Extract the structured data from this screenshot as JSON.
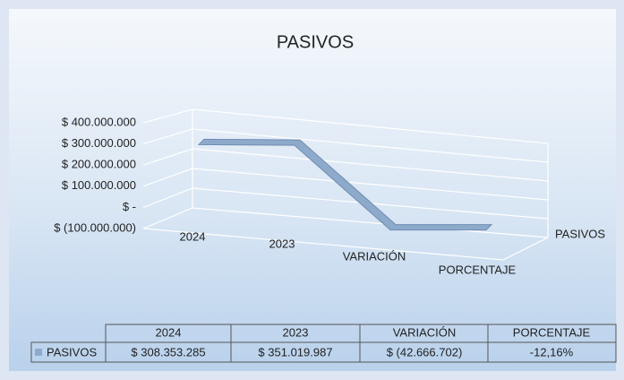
{
  "chart_data": {
    "type": "line",
    "title": "PASIVOS",
    "categories": [
      "2024",
      "2023",
      "VARIACIÓN",
      "PORCENTAJE"
    ],
    "series": [
      {
        "name": "PASIVOS",
        "color": "#8eaacb",
        "values": [
          308353285,
          351019987,
          -42666702,
          -0.1216
        ],
        "value_labels": [
          "$ 308.353.285",
          "$ 351.019.987",
          "$ (42.666.702)",
          "-12,16%"
        ]
      }
    ],
    "ylim": [
      -100000000,
      400000000
    ],
    "yticks": [
      {
        "value": -100000000,
        "label": "$ (100.000.000)"
      },
      {
        "value": 0,
        "label": "$ -"
      },
      {
        "value": 100000000,
        "label": "$ 100.000.000"
      },
      {
        "value": 200000000,
        "label": "$ 200.000.000"
      },
      {
        "value": 300000000,
        "label": "$ 300.000.000"
      },
      {
        "value": 400000000,
        "label": "$ 400.000.000"
      }
    ],
    "grid": true
  }
}
